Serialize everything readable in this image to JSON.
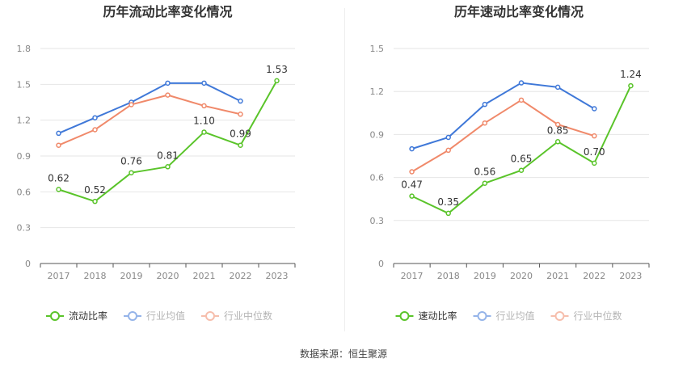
{
  "source_text": "数据来源：恒生聚源",
  "chart_data": [
    {
      "type": "line",
      "title": "历年流动比率变化情况",
      "categories": [
        "2017",
        "2018",
        "2019",
        "2020",
        "2021",
        "2022",
        "2023"
      ],
      "yticks": [
        "0",
        "0.3",
        "0.6",
        "0.9",
        "1.2",
        "1.5",
        "1.8"
      ],
      "ylim": [
        0,
        1.8
      ],
      "grid": true,
      "legend_position": "bottom",
      "series": [
        {
          "name": "流动比率",
          "color": "#5ac42a",
          "labeled": true,
          "values": [
            0.62,
            0.52,
            0.76,
            0.81,
            1.1,
            0.99,
            1.53
          ],
          "labels": [
            "0.62",
            "0.52",
            "0.76",
            "0.81",
            "1.10",
            "0.99",
            "1.53"
          ]
        },
        {
          "name": "行业均值",
          "color": "#3f78d8",
          "labeled": false,
          "values": [
            1.09,
            1.22,
            1.35,
            1.51,
            1.51,
            1.36,
            null
          ]
        },
        {
          "name": "行业中位数",
          "color": "#f0896a",
          "labeled": false,
          "values": [
            0.99,
            1.12,
            1.33,
            1.41,
            1.32,
            1.25,
            null
          ]
        }
      ]
    },
    {
      "type": "line",
      "title": "历年速动比率变化情况",
      "categories": [
        "2017",
        "2018",
        "2019",
        "2020",
        "2021",
        "2022",
        "2023"
      ],
      "yticks": [
        "0",
        "0.3",
        "0.6",
        "0.9",
        "1.2",
        "1.5"
      ],
      "ylim": [
        0,
        1.5
      ],
      "grid": true,
      "legend_position": "bottom",
      "series": [
        {
          "name": "速动比率",
          "color": "#5ac42a",
          "labeled": true,
          "values": [
            0.47,
            0.35,
            0.56,
            0.65,
            0.85,
            0.7,
            1.24
          ],
          "labels": [
            "0.47",
            "0.35",
            "0.56",
            "0.65",
            "0.85",
            "0.70",
            "1.24"
          ]
        },
        {
          "name": "行业均值",
          "color": "#3f78d8",
          "labeled": false,
          "values": [
            0.8,
            0.88,
            1.11,
            1.26,
            1.23,
            1.08,
            null
          ]
        },
        {
          "name": "行业中位数",
          "color": "#f0896a",
          "labeled": false,
          "values": [
            0.64,
            0.79,
            0.98,
            1.14,
            0.97,
            0.89,
            null
          ]
        }
      ]
    }
  ]
}
